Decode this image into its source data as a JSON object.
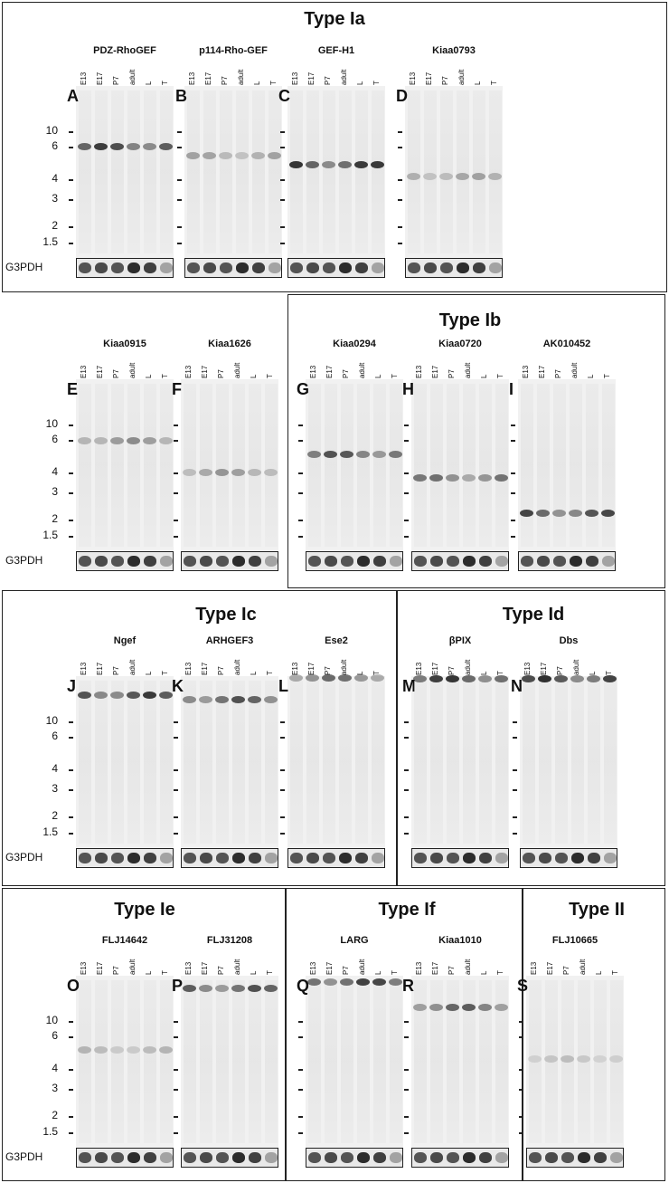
{
  "lanes": [
    "E13",
    "E17",
    "P7",
    "adult",
    "L",
    "T"
  ],
  "mw_labels": [
    "10",
    "6",
    "4",
    "3",
    "2",
    "1.5"
  ],
  "control_label": "G3PDH",
  "types": [
    {
      "label": "Type Ia"
    },
    {
      "label": "Type Ib"
    },
    {
      "label": "Type Ic"
    },
    {
      "label": "Type Id"
    },
    {
      "label": "Type Ie"
    },
    {
      "label": "Type If"
    },
    {
      "label": "Type II"
    }
  ],
  "panels": [
    {
      "letter": "A",
      "gene": "PDZ-RhoGEF"
    },
    {
      "letter": "B",
      "gene": "p114-Rho-GEF"
    },
    {
      "letter": "C",
      "gene": "GEF-H1"
    },
    {
      "letter": "D",
      "gene": "Kiaa0793"
    },
    {
      "letter": "E",
      "gene": "Kiaa0915"
    },
    {
      "letter": "F",
      "gene": "Kiaa1626"
    },
    {
      "letter": "G",
      "gene": "Kiaa0294"
    },
    {
      "letter": "H",
      "gene": "Kiaa0720"
    },
    {
      "letter": "I",
      "gene": "AK010452"
    },
    {
      "letter": "J",
      "gene": "Ngef"
    },
    {
      "letter": "K",
      "gene": "ARHGEF3"
    },
    {
      "letter": "L",
      "gene": "Ese2"
    },
    {
      "letter": "M",
      "gene": "βPIX"
    },
    {
      "letter": "N",
      "gene": "Dbs"
    },
    {
      "letter": "O",
      "gene": "FLJ14642"
    },
    {
      "letter": "P",
      "gene": "FLJ31208"
    },
    {
      "letter": "Q",
      "gene": "LARG"
    },
    {
      "letter": "R",
      "gene": "Kiaa1010"
    },
    {
      "letter": "S",
      "gene": "FLJ10665"
    }
  ]
}
